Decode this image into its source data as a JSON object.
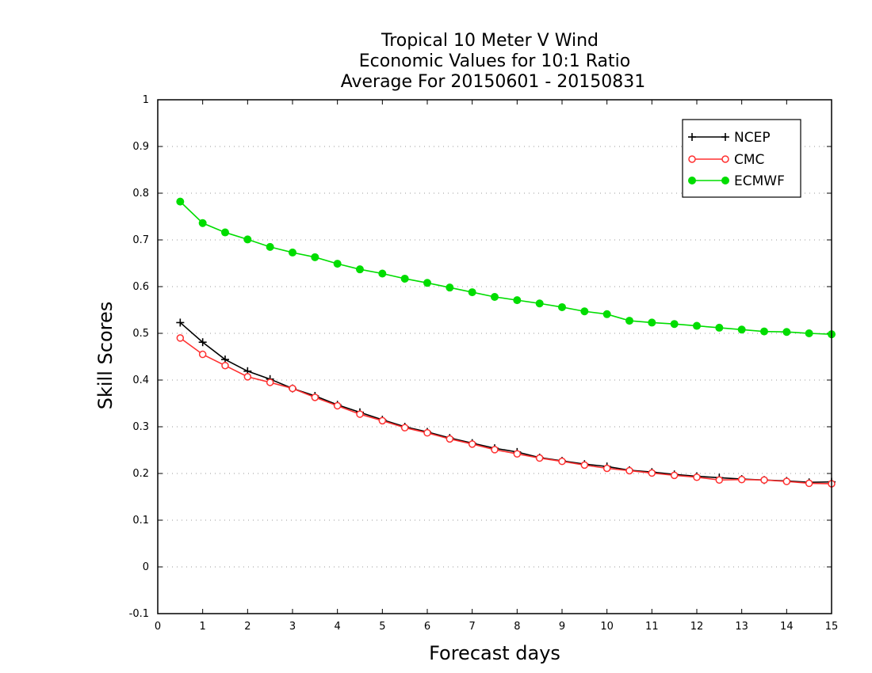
{
  "chart_data": {
    "type": "line",
    "title_lines": [
      "Tropical 10 Meter V Wind",
      "Economic Values for 10:1 Ratio",
      "Average For 20150601 - 20150831"
    ],
    "xlabel": "Forecast days",
    "ylabel": "Skill Scores",
    "xlim": [
      0,
      15
    ],
    "ylim": [
      -0.1,
      1
    ],
    "xticks": [
      "0",
      "1",
      "2",
      "3",
      "4",
      "5",
      "6",
      "7",
      "8",
      "9",
      "10",
      "11",
      "12",
      "13",
      "14",
      "15"
    ],
    "yticks": [
      "-0.1",
      "0",
      "0.1",
      "0.2",
      "0.3",
      "0.4",
      "0.5",
      "0.6",
      "0.7",
      "0.8",
      "0.9",
      "1"
    ],
    "grid": "horizontal dotted",
    "legend_position": "top-right",
    "x": [
      0.5,
      1,
      1.5,
      2,
      2.5,
      3,
      3.5,
      4,
      4.5,
      5,
      5.5,
      6,
      6.5,
      7,
      7.5,
      8,
      8.5,
      9,
      9.5,
      10,
      10.5,
      11,
      11.5,
      12,
      12.5,
      13,
      13.5,
      14,
      14.5,
      15
    ],
    "series": [
      {
        "name": "NCEP",
        "color": "#000000",
        "marker": "plus",
        "values": [
          0.523,
          0.481,
          0.444,
          0.419,
          0.402,
          0.382,
          0.366,
          0.347,
          0.331,
          0.315,
          0.3,
          0.289,
          0.276,
          0.265,
          0.254,
          0.246,
          0.234,
          0.227,
          0.22,
          0.215,
          0.207,
          0.203,
          0.198,
          0.194,
          0.191,
          0.188,
          0.186,
          0.184,
          0.181,
          0.182
        ]
      },
      {
        "name": "CMC",
        "color": "#ff3030",
        "marker": "open-circle",
        "values": [
          0.49,
          0.455,
          0.431,
          0.407,
          0.395,
          0.382,
          0.363,
          0.345,
          0.327,
          0.313,
          0.298,
          0.287,
          0.274,
          0.263,
          0.251,
          0.242,
          0.233,
          0.226,
          0.218,
          0.211,
          0.206,
          0.201,
          0.196,
          0.192,
          0.186,
          0.187,
          0.186,
          0.183,
          0.179,
          0.178
        ]
      },
      {
        "name": "ECMWF",
        "color": "#00dd00",
        "marker": "filled-circle",
        "values": [
          0.782,
          0.736,
          0.716,
          0.701,
          0.685,
          0.673,
          0.663,
          0.649,
          0.637,
          0.628,
          0.617,
          0.608,
          0.598,
          0.588,
          0.578,
          0.571,
          0.564,
          0.556,
          0.547,
          0.541,
          0.527,
          0.523,
          0.52,
          0.516,
          0.512,
          0.508,
          0.504,
          0.503,
          0.5,
          0.498
        ]
      }
    ]
  }
}
